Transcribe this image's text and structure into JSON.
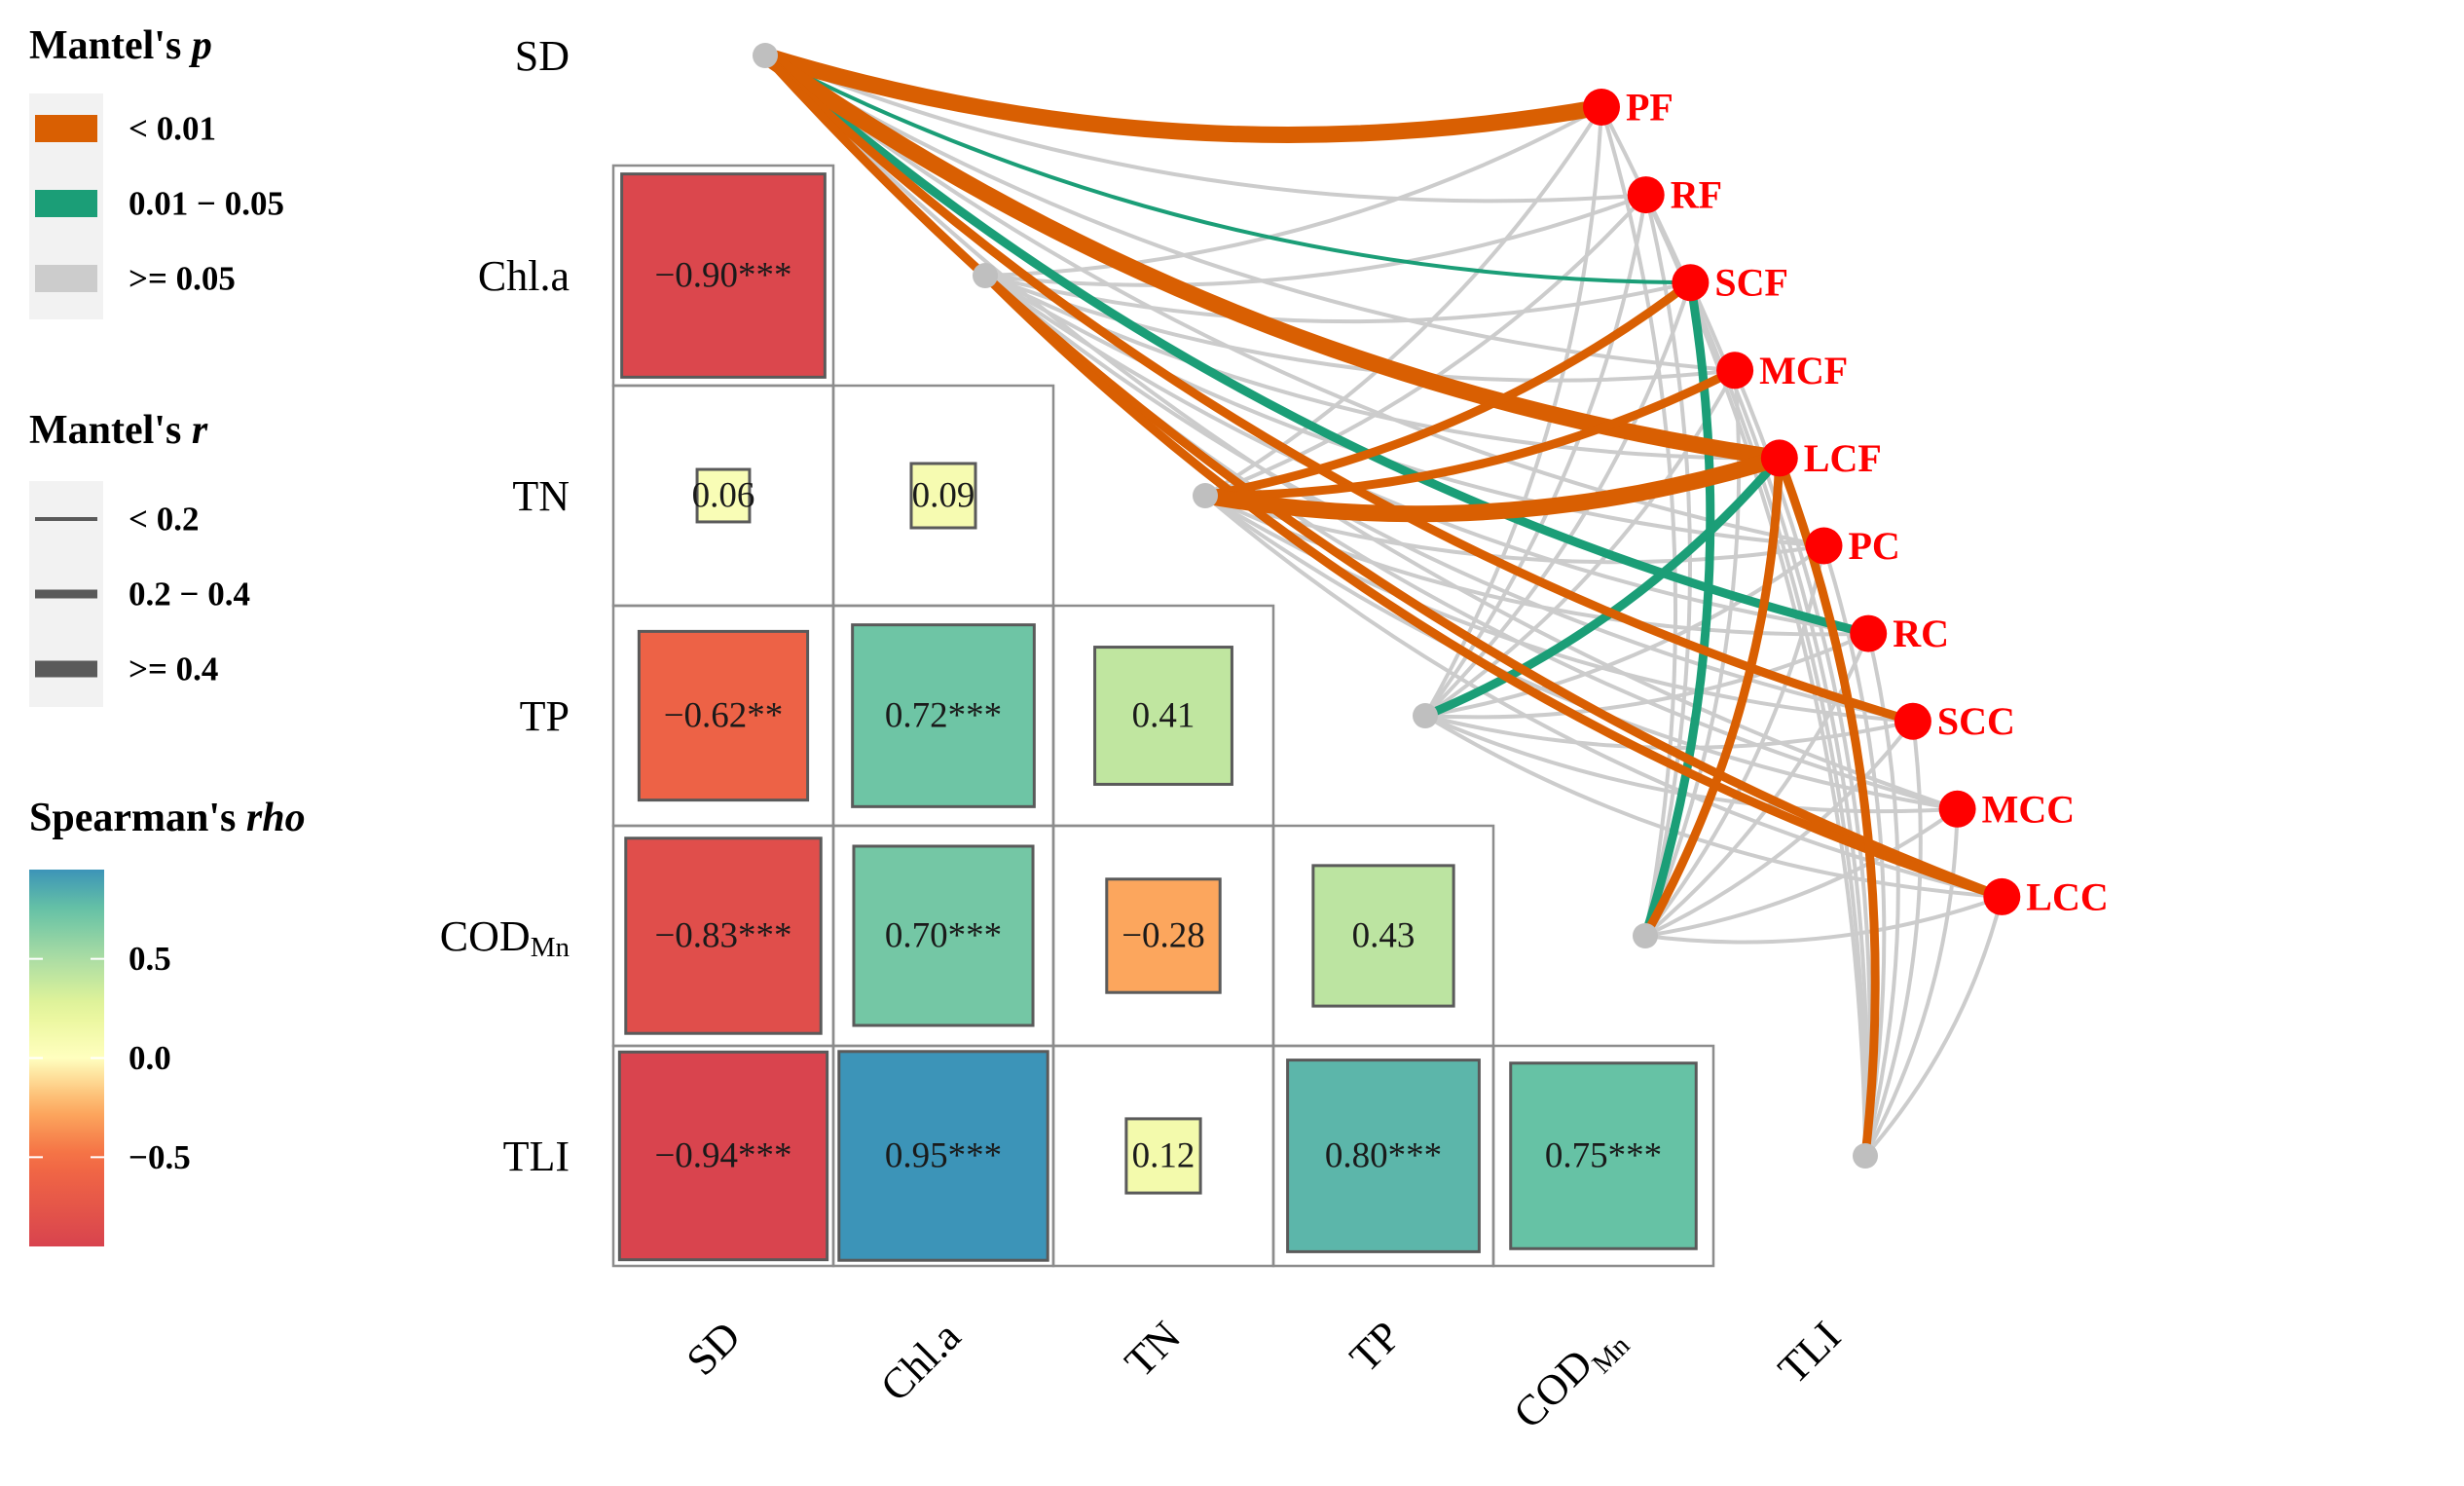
{
  "chart_data": {
    "type": "heatmap",
    "title": "",
    "variables": [
      "SD",
      "Chl.a",
      "TN",
      "TP",
      "COD_Mn",
      "TLI"
    ],
    "variable_labels": [
      {
        "main": "SD",
        "sub": ""
      },
      {
        "main": "Chl.a",
        "sub": ""
      },
      {
        "main": "TN",
        "sub": ""
      },
      {
        "main": "TP",
        "sub": ""
      },
      {
        "main": "COD",
        "sub": "Mn"
      },
      {
        "main": "TLI",
        "sub": ""
      }
    ],
    "spearman_cells": [
      {
        "row": "Chl.a",
        "col": "SD",
        "rho": -0.9,
        "label": "−0.90***"
      },
      {
        "row": "TN",
        "col": "SD",
        "rho": 0.06,
        "label": "0.06"
      },
      {
        "row": "TN",
        "col": "Chl.a",
        "rho": 0.09,
        "label": "0.09"
      },
      {
        "row": "TP",
        "col": "SD",
        "rho": -0.62,
        "label": "−0.62**"
      },
      {
        "row": "TP",
        "col": "Chl.a",
        "rho": 0.72,
        "label": "0.72***"
      },
      {
        "row": "TP",
        "col": "TN",
        "rho": 0.41,
        "label": "0.41"
      },
      {
        "row": "COD_Mn",
        "col": "SD",
        "rho": -0.83,
        "label": "−0.83***"
      },
      {
        "row": "COD_Mn",
        "col": "Chl.a",
        "rho": 0.7,
        "label": "0.70***"
      },
      {
        "row": "COD_Mn",
        "col": "TN",
        "rho": -0.28,
        "label": "−0.28"
      },
      {
        "row": "COD_Mn",
        "col": "TP",
        "rho": 0.43,
        "label": "0.43"
      },
      {
        "row": "TLI",
        "col": "SD",
        "rho": -0.94,
        "label": "−0.94***"
      },
      {
        "row": "TLI",
        "col": "Chl.a",
        "rho": 0.95,
        "label": "0.95***"
      },
      {
        "row": "TLI",
        "col": "TN",
        "rho": 0.12,
        "label": "0.12"
      },
      {
        "row": "TLI",
        "col": "TP",
        "rho": 0.8,
        "label": "0.80***"
      },
      {
        "row": "TLI",
        "col": "COD_Mn",
        "rho": 0.75,
        "label": "0.75***"
      }
    ],
    "biological_groups": [
      "PF",
      "RF",
      "SCF",
      "MCF",
      "LCF",
      "PC",
      "RC",
      "SCC",
      "MCC",
      "LCC"
    ],
    "mantel_links": [
      {
        "env": "SD",
        "bio": "PF",
        "p": "< 0.01",
        "r": ">= 0.4"
      },
      {
        "env": "SD",
        "bio": "RF",
        "p": ">= 0.05",
        "r": "< 0.2"
      },
      {
        "env": "SD",
        "bio": "SCF",
        "p": "0.01 − 0.05",
        "r": "< 0.2"
      },
      {
        "env": "SD",
        "bio": "MCF",
        "p": ">= 0.05",
        "r": "< 0.2"
      },
      {
        "env": "SD",
        "bio": "LCF",
        "p": "< 0.01",
        "r": ">= 0.4"
      },
      {
        "env": "SD",
        "bio": "PC",
        "p": ">= 0.05",
        "r": "< 0.2"
      },
      {
        "env": "SD",
        "bio": "RC",
        "p": "0.01 − 0.05",
        "r": "0.2 − 0.4"
      },
      {
        "env": "SD",
        "bio": "SCC",
        "p": "< 0.01",
        "r": "0.2 − 0.4"
      },
      {
        "env": "SD",
        "bio": "MCC",
        "p": ">= 0.05",
        "r": "< 0.2"
      },
      {
        "env": "SD",
        "bio": "LCC",
        "p": "< 0.01",
        "r": "0.2 − 0.4"
      },
      {
        "env": "Chl.a",
        "bio": "PF",
        "p": ">= 0.05",
        "r": "< 0.2"
      },
      {
        "env": "Chl.a",
        "bio": "RF",
        "p": ">= 0.05",
        "r": "< 0.2"
      },
      {
        "env": "Chl.a",
        "bio": "SCF",
        "p": ">= 0.05",
        "r": "< 0.2"
      },
      {
        "env": "Chl.a",
        "bio": "MCF",
        "p": ">= 0.05",
        "r": "< 0.2"
      },
      {
        "env": "Chl.a",
        "bio": "LCF",
        "p": ">= 0.05",
        "r": "< 0.2"
      },
      {
        "env": "Chl.a",
        "bio": "PC",
        "p": ">= 0.05",
        "r": "< 0.2"
      },
      {
        "env": "Chl.a",
        "bio": "RC",
        "p": ">= 0.05",
        "r": "< 0.2"
      },
      {
        "env": "Chl.a",
        "bio": "SCC",
        "p": ">= 0.05",
        "r": "< 0.2"
      },
      {
        "env": "Chl.a",
        "bio": "MCC",
        "p": ">= 0.05",
        "r": "< 0.2"
      },
      {
        "env": "Chl.a",
        "bio": "LCC",
        "p": "< 0.01",
        "r": "0.2 − 0.4"
      },
      {
        "env": "TN",
        "bio": "PF",
        "p": ">= 0.05",
        "r": "< 0.2"
      },
      {
        "env": "TN",
        "bio": "RF",
        "p": ">= 0.05",
        "r": "< 0.2"
      },
      {
        "env": "TN",
        "bio": "SCF",
        "p": "< 0.01",
        "r": "0.2 − 0.4"
      },
      {
        "env": "TN",
        "bio": "MCF",
        "p": "< 0.01",
        "r": "0.2 − 0.4"
      },
      {
        "env": "TN",
        "bio": "LCF",
        "p": "< 0.01",
        "r": ">= 0.4"
      },
      {
        "env": "TN",
        "bio": "PC",
        "p": ">= 0.05",
        "r": "< 0.2"
      },
      {
        "env": "TN",
        "bio": "RC",
        "p": ">= 0.05",
        "r": "< 0.2"
      },
      {
        "env": "TN",
        "bio": "SCC",
        "p": ">= 0.05",
        "r": "< 0.2"
      },
      {
        "env": "TN",
        "bio": "MCC",
        "p": ">= 0.05",
        "r": "< 0.2"
      },
      {
        "env": "TN",
        "bio": "LCC",
        "p": ">= 0.05",
        "r": "< 0.2"
      },
      {
        "env": "TP",
        "bio": "PF",
        "p": ">= 0.05",
        "r": "< 0.2"
      },
      {
        "env": "TP",
        "bio": "RF",
        "p": ">= 0.05",
        "r": "< 0.2"
      },
      {
        "env": "TP",
        "bio": "SCF",
        "p": ">= 0.05",
        "r": "< 0.2"
      },
      {
        "env": "TP",
        "bio": "MCF",
        "p": ">= 0.05",
        "r": "< 0.2"
      },
      {
        "env": "TP",
        "bio": "LCF",
        "p": "0.01 − 0.05",
        "r": "0.2 − 0.4"
      },
      {
        "env": "TP",
        "bio": "PC",
        "p": ">= 0.05",
        "r": "< 0.2"
      },
      {
        "env": "TP",
        "bio": "RC",
        "p": ">= 0.05",
        "r": "< 0.2"
      },
      {
        "env": "TP",
        "bio": "SCC",
        "p": ">= 0.05",
        "r": "< 0.2"
      },
      {
        "env": "TP",
        "bio": "MCC",
        "p": ">= 0.05",
        "r": "< 0.2"
      },
      {
        "env": "TP",
        "bio": "LCC",
        "p": ">= 0.05",
        "r": "< 0.2"
      },
      {
        "env": "COD_Mn",
        "bio": "PF",
        "p": ">= 0.05",
        "r": "< 0.2"
      },
      {
        "env": "COD_Mn",
        "bio": "RF",
        "p": ">= 0.05",
        "r": "< 0.2"
      },
      {
        "env": "COD_Mn",
        "bio": "SCF",
        "p": "0.01 − 0.05",
        "r": "0.2 − 0.4"
      },
      {
        "env": "COD_Mn",
        "bio": "MCF",
        "p": ">= 0.05",
        "r": "< 0.2"
      },
      {
        "env": "COD_Mn",
        "bio": "LCF",
        "p": "< 0.01",
        "r": "0.2 − 0.4"
      },
      {
        "env": "COD_Mn",
        "bio": "PC",
        "p": ">= 0.05",
        "r": "< 0.2"
      },
      {
        "env": "COD_Mn",
        "bio": "RC",
        "p": ">= 0.05",
        "r": "< 0.2"
      },
      {
        "env": "COD_Mn",
        "bio": "SCC",
        "p": ">= 0.05",
        "r": "< 0.2"
      },
      {
        "env": "COD_Mn",
        "bio": "MCC",
        "p": ">= 0.05",
        "r": "< 0.2"
      },
      {
        "env": "COD_Mn",
        "bio": "LCC",
        "p": ">= 0.05",
        "r": "< 0.2"
      },
      {
        "env": "TLI",
        "bio": "PF",
        "p": ">= 0.05",
        "r": "< 0.2"
      },
      {
        "env": "TLI",
        "bio": "RF",
        "p": ">= 0.05",
        "r": "< 0.2"
      },
      {
        "env": "TLI",
        "bio": "SCF",
        "p": ">= 0.05",
        "r": "< 0.2"
      },
      {
        "env": "TLI",
        "bio": "MCF",
        "p": ">= 0.05",
        "r": "< 0.2"
      },
      {
        "env": "TLI",
        "bio": "LCF",
        "p": "< 0.01",
        "r": "0.2 − 0.4"
      },
      {
        "env": "TLI",
        "bio": "PC",
        "p": ">= 0.05",
        "r": "< 0.2"
      },
      {
        "env": "TLI",
        "bio": "RC",
        "p": ">= 0.05",
        "r": "< 0.2"
      },
      {
        "env": "TLI",
        "bio": "SCC",
        "p": ">= 0.05",
        "r": "< 0.2"
      },
      {
        "env": "TLI",
        "bio": "MCC",
        "p": ">= 0.05",
        "r": "< 0.2"
      },
      {
        "env": "TLI",
        "bio": "LCC",
        "p": ">= 0.05",
        "r": "< 0.2"
      }
    ],
    "legend": {
      "mantel_p": {
        "title": "Mantel's",
        "title_italic": "p",
        "items": [
          {
            "label": "< 0.01",
            "color": "#d95f02"
          },
          {
            "label": "0.01 − 0.05",
            "color": "#1b9e77"
          },
          {
            "label": ">= 0.05",
            "color": "#cccccc"
          }
        ]
      },
      "mantel_r": {
        "title": "Mantel's",
        "title_italic": "r",
        "items": [
          {
            "label": "< 0.2",
            "width_level": 1
          },
          {
            "label": "0.2 − 0.4",
            "width_level": 2
          },
          {
            "label": ">= 0.4",
            "width_level": 3
          }
        ]
      },
      "spearman": {
        "title": "Spearman's",
        "title_italic": "rho",
        "ticks": [
          0.5,
          0.0,
          -0.5
        ],
        "tick_labels": [
          "0.5",
          "0.0",
          "−0.5"
        ],
        "range": [
          -0.95,
          0.95
        ]
      }
    },
    "colors": {
      "p_lt_001": "#d95f02",
      "p_001_005": "#1b9e77",
      "p_ge_005": "#cccccc",
      "node": "#ff0000",
      "env_node": "#bfbfbf",
      "grid": "#8c8c8c",
      "square_border": "#5a5a5a",
      "legend_bg": "#f2f2f2",
      "legend_r_line": "#5a5a5a"
    }
  }
}
